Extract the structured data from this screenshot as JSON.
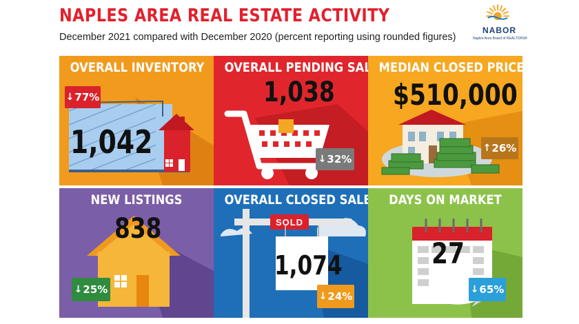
{
  "header": {
    "title": "NAPLES AREA REAL ESTATE ACTIVITY",
    "subtitle": "December 2021 compared with December 2020 (percent reporting using rounded figures)",
    "logo_text": "NABOR",
    "logo_subtext": "Naples Area Board of REALTORS®"
  },
  "panels": [
    {
      "title": "OVERALL INVENTORY",
      "value": "1,042",
      "change": "77%",
      "direction": "down",
      "bg": "#f29a1d",
      "badge_color": "#d9222b"
    },
    {
      "title": "OVERALL PENDING SALES",
      "value": "1,038",
      "change": "32%",
      "direction": "down",
      "bg": "#e0262c",
      "badge_color": "#7a7a7a"
    },
    {
      "title": "MEDIAN CLOSED PRICE",
      "value": "$510,000",
      "change": "26%",
      "direction": "up",
      "bg": "#f7a720",
      "badge_color": "#b8761c"
    },
    {
      "title": "NEW LISTINGS",
      "value": "838",
      "change": "25%",
      "direction": "down",
      "bg": "#7b5ea8",
      "badge_color": "#2f8b3e"
    },
    {
      "title": "OVERALL CLOSED SALES",
      "value": "1,074",
      "change": "24%",
      "direction": "down",
      "bg": "#1e6fb8",
      "badge_color": "#ef9a1d"
    },
    {
      "title": "DAYS ON MARKET",
      "value": "27",
      "change": "65%",
      "direction": "down",
      "bg": "#8dc24a",
      "badge_color": "#2b9fd9"
    }
  ],
  "sign_text": "SOLD",
  "arrows": {
    "down": "↓",
    "up": "↑"
  }
}
